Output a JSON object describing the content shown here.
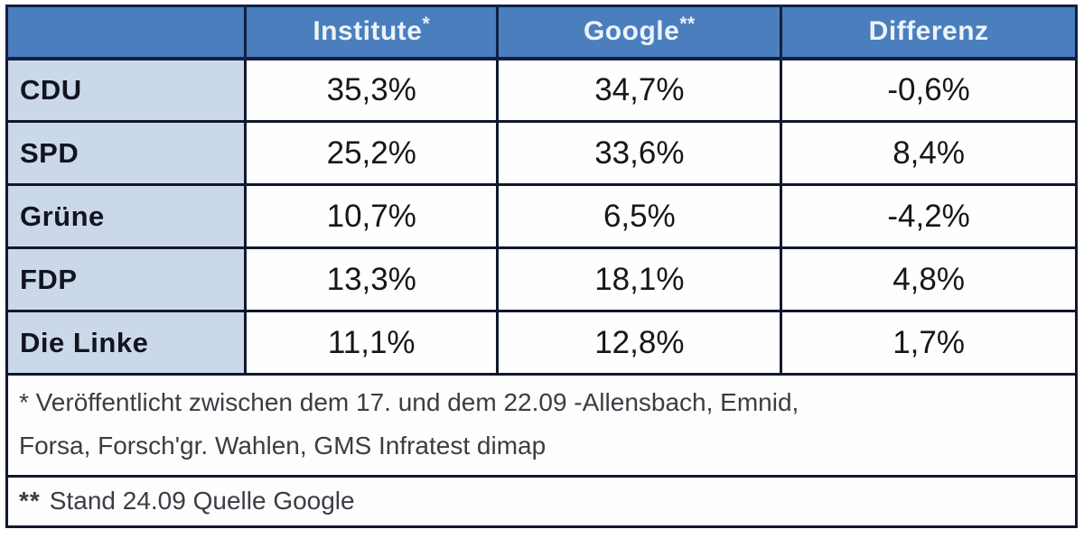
{
  "table": {
    "header": {
      "party_col_label": "",
      "institute": {
        "label": "Institute",
        "marker": "*"
      },
      "google": {
        "label": "Google",
        "marker": "**"
      },
      "differenz": {
        "label": "Differenz",
        "marker": ""
      }
    },
    "rows": [
      {
        "party": "CDU",
        "institute": "35,3%",
        "google": "34,7%",
        "diff": "-0,6%"
      },
      {
        "party": "SPD",
        "institute": "25,2%",
        "google": "33,6%",
        "diff": "8,4%"
      },
      {
        "party": "Grüne",
        "institute": "10,7%",
        "google": "6,5%",
        "diff": "-4,2%"
      },
      {
        "party": "FDP",
        "institute": "13,3%",
        "google": "18,1%",
        "diff": "4,8%"
      },
      {
        "party": "Die Linke",
        "institute": "11,1%",
        "google": "12,8%",
        "diff": "1,7%"
      }
    ]
  },
  "footnotes": {
    "first": {
      "lines": [
        "* Veröffentlicht zwischen dem 17. und dem 22.09 -Allensbach, Emnid,",
        "Forsa, Forsch'gr. Wahlen, GMS Infratest dimap"
      ]
    },
    "second": {
      "marker": "**",
      "text": "Stand 24.09 Quelle Google"
    }
  },
  "colors": {
    "header_bg": "#4a7ebd",
    "header_text": "#edf3fb",
    "party_col_bg": "#cbd8ea",
    "data_text": "#17171a",
    "negative_text": "#c23434",
    "border": "#10182b",
    "footnote_text": "#3c3c44"
  },
  "chart_data": {
    "type": "table",
    "title": "",
    "columns": [
      "",
      "Institute*",
      "Google**",
      "Differenz"
    ],
    "categories": [
      "CDU",
      "SPD",
      "Grüne",
      "FDP",
      "Die Linke"
    ],
    "series": [
      {
        "name": "Institute*",
        "values": [
          35.3,
          25.2,
          10.7,
          13.3,
          11.1
        ]
      },
      {
        "name": "Google**",
        "values": [
          34.7,
          33.6,
          6.5,
          18.1,
          12.8
        ]
      },
      {
        "name": "Differenz",
        "values": [
          -0.6,
          8.4,
          -4.2,
          4.8,
          1.7
        ]
      }
    ],
    "cell_text": [
      [
        "CDU",
        "35,3%",
        "34,7%",
        "-0,6%"
      ],
      [
        "SPD",
        "25,2%",
        "33,6%",
        "8,4%"
      ],
      [
        "Grüne",
        "10,7%",
        "6,5%",
        "-4,2%"
      ],
      [
        "FDP",
        "13,3%",
        "18,1%",
        "4,8%"
      ],
      [
        "Die Linke",
        "11,1%",
        "12,8%",
        "1,7%"
      ]
    ],
    "annotations": [
      "* Veröffentlicht zwischen dem 17. und dem 22.09 -Allensbach, Emnid, Forsa, Forsch'gr. Wahlen, GMS Infratest dimap",
      "** Stand 24.09 Quelle Google"
    ],
    "layout_hints": {
      "negative_values_red": true,
      "header_style": "blue-banner",
      "first_column_style": "light-blue"
    }
  }
}
